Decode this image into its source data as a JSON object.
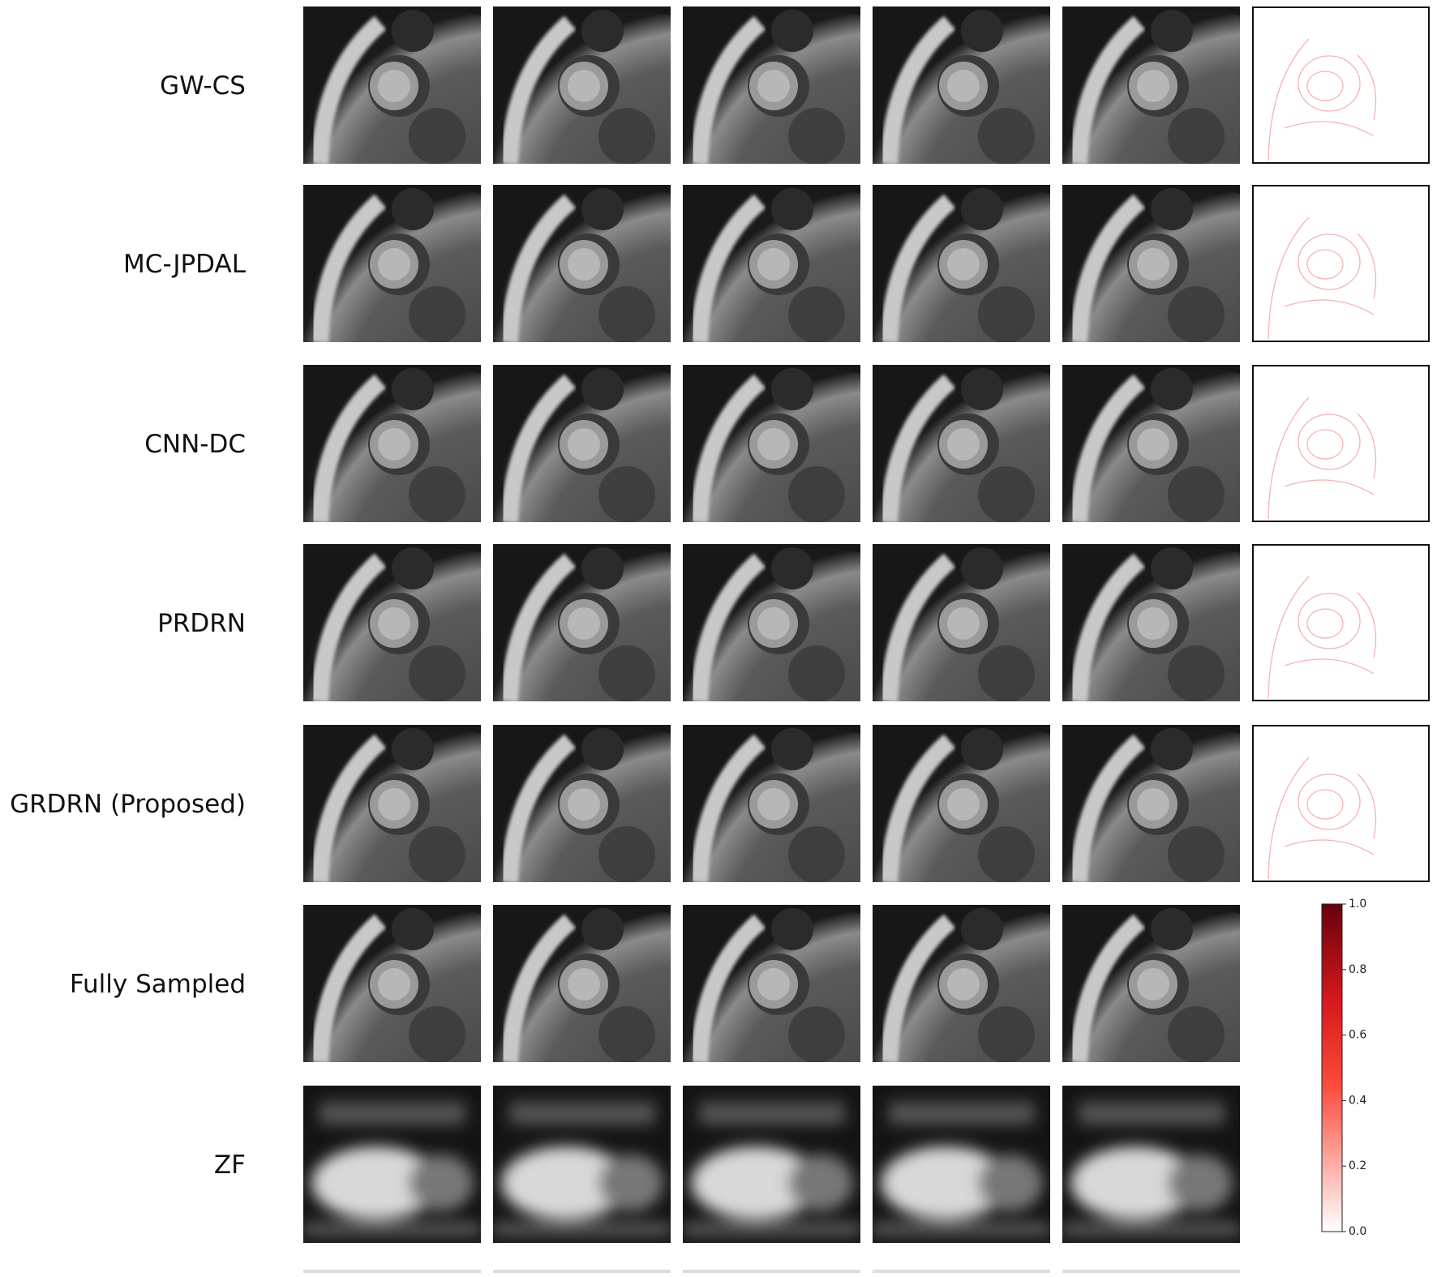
{
  "rows": [
    {
      "label": "GW-CS"
    },
    {
      "label": "MC-JPDAL"
    },
    {
      "label": "CNN-DC"
    },
    {
      "label": "PRDRN"
    },
    {
      "label": "GRDRN (Proposed)"
    },
    {
      "label": "Fully Sampled"
    },
    {
      "label": "ZF"
    }
  ],
  "colorbar": {
    "lim": [
      0,
      1
    ],
    "ticks": [
      {
        "value": 0,
        "label": "0.0"
      },
      {
        "value": 0.2,
        "label": "0.2"
      },
      {
        "value": 0.4,
        "label": "0.4"
      },
      {
        "value": 0.6,
        "label": "0.6"
      },
      {
        "value": 0.8,
        "label": "0.8"
      },
      {
        "value": 1,
        "label": "1.0"
      }
    ]
  }
}
